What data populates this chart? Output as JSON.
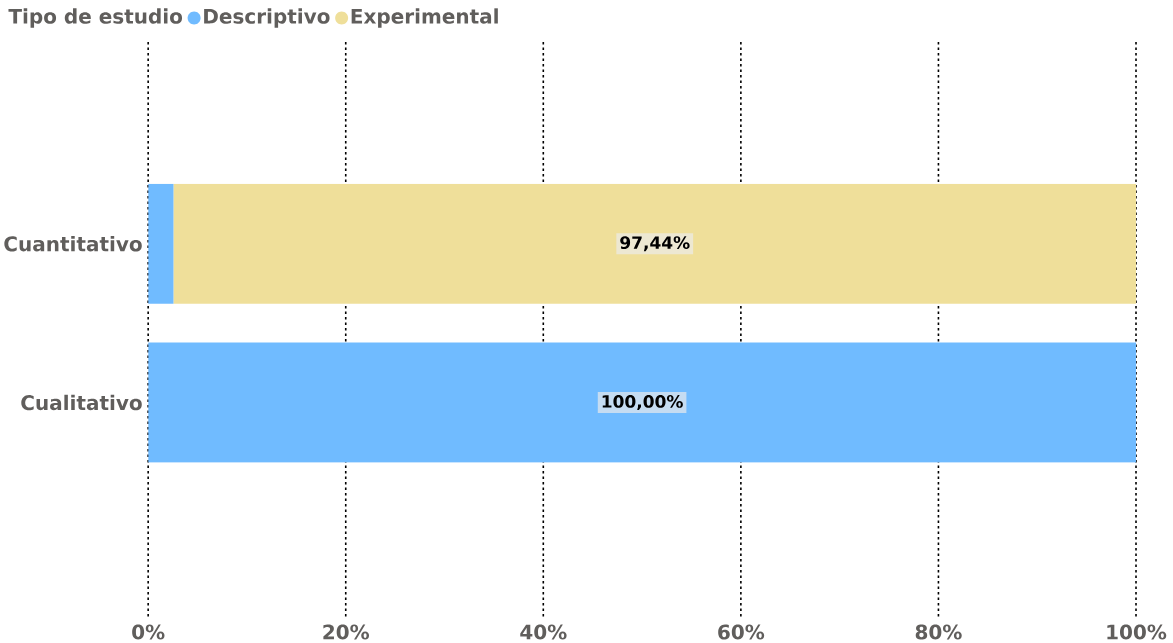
{
  "chart_data": {
    "type": "bar",
    "orientation": "horizontal",
    "stacked": true,
    "legend_title": "Tipo de estudio",
    "legend": "top left",
    "grid": "x",
    "categories": [
      "Cuantitativo",
      "Cualitativo"
    ],
    "series": [
      {
        "name": "Descriptivo",
        "color": "#70bbff",
        "values": [
          2.56,
          100
        ],
        "value_labels": [
          null,
          "100,00%"
        ]
      },
      {
        "name": "Experimental",
        "color": "#efdf9a",
        "values": [
          97.44,
          null
        ],
        "value_labels": [
          "97,44%",
          null
        ]
      }
    ],
    "xlim": [
      0,
      100
    ],
    "xticks": [
      {
        "value": 0,
        "label": "0%"
      },
      {
        "value": 20,
        "label": "20%"
      },
      {
        "value": 40,
        "label": "40%"
      },
      {
        "value": 60,
        "label": "60%"
      },
      {
        "value": 80,
        "label": "80%"
      },
      {
        "value": 100,
        "label": "100%"
      }
    ]
  }
}
